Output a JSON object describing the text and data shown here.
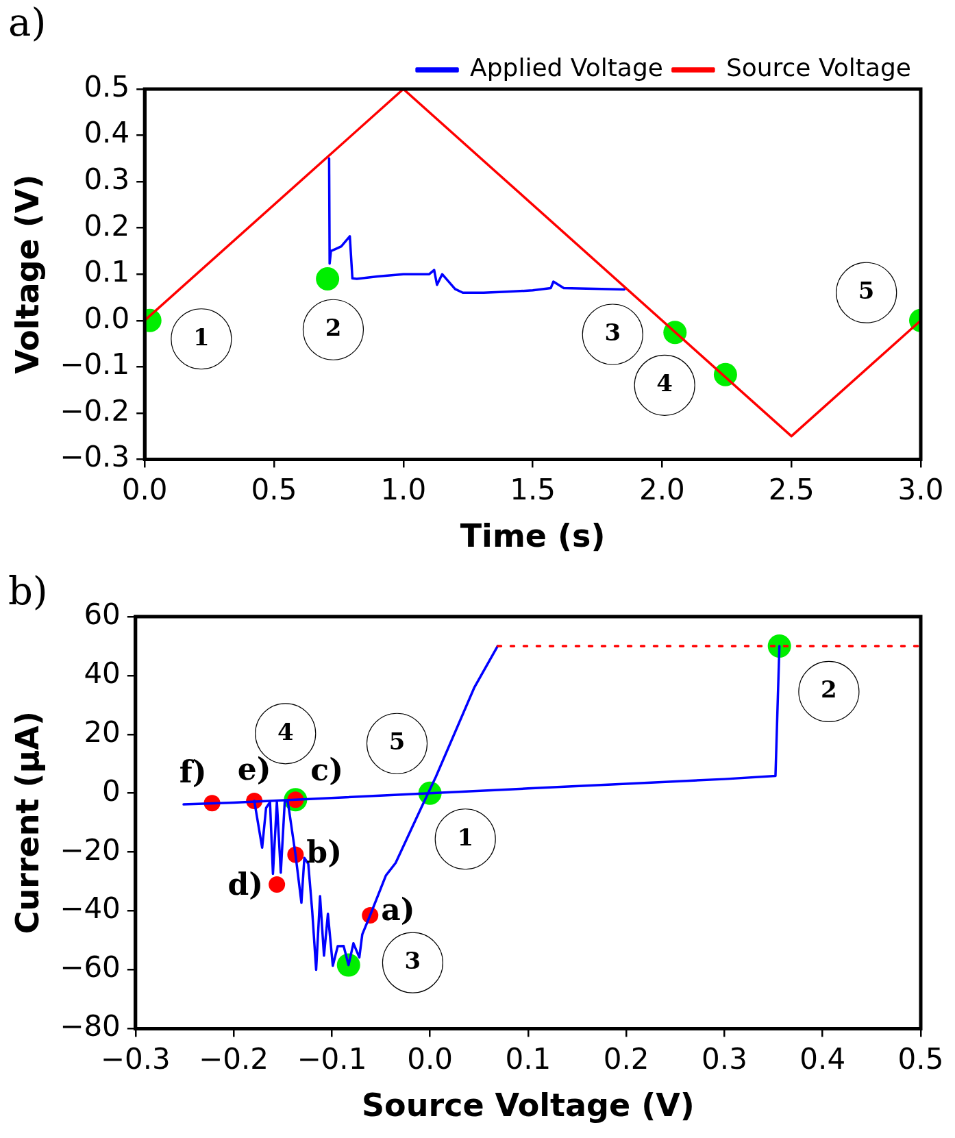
{
  "chart_data": [
    {
      "type": "line",
      "title": "a)",
      "xlabel": "Time (s)",
      "ylabel": "Voltage (V)",
      "xlim": [
        0,
        3
      ],
      "xticks": [
        {
          "value": 0,
          "label": "0.0"
        },
        0.5,
        {
          "value": 1,
          "label": "1.0"
        },
        1.5,
        {
          "value": 2,
          "label": "2.0"
        },
        2.5,
        {
          "value": 3,
          "label": "3.0"
        }
      ],
      "ylim": [
        -0.3,
        0.5
      ],
      "yticks": [
        -0.3,
        -0.2,
        -0.1,
        {
          "value": 0,
          "label": "0.0"
        },
        0.1,
        0.2,
        0.3,
        0.4,
        0.5
      ],
      "grid": false,
      "legend": "top right",
      "series": [
        {
          "name": "Applied Voltage",
          "color": "#0000ff",
          "x": [
            0.713,
            0.715,
            0.72,
            0.74,
            0.76,
            0.793,
            0.803,
            0.82,
            0.9,
            1.0,
            1.1,
            1.119,
            1.13,
            1.15,
            1.2,
            1.23,
            1.31,
            1.4,
            1.5,
            1.57,
            1.58,
            1.62,
            1.854
          ],
          "values": [
            0.35,
            0.123,
            0.15,
            0.155,
            0.16,
            0.182,
            0.091,
            0.09,
            0.095,
            0.1,
            0.1,
            0.109,
            0.077,
            0.1,
            0.068,
            0.06,
            0.06,
            0.062,
            0.065,
            0.07,
            0.084,
            0.07,
            0.067
          ]
        },
        {
          "name": "Source Voltage",
          "color": "#ff0000",
          "x": [
            0,
            1,
            2.5,
            3
          ],
          "values": [
            0,
            0.5,
            -0.25,
            0
          ]
        },
        {
          "type": "scatter",
          "color": "#00ee00",
          "x": [
            0.02,
            0.707,
            2.05,
            2.245,
            3.0
          ],
          "values": [
            0,
            0.09,
            -0.026,
            -0.117,
            0
          ]
        }
      ],
      "annotations": [
        "1",
        "2",
        "3",
        "4",
        "5"
      ]
    },
    {
      "type": "line",
      "title": "b)",
      "xlabel": "Source Voltage (V)",
      "ylabel": "Current (μA)",
      "xlim": [
        -0.3,
        0.5
      ],
      "xticks": [
        -0.3,
        -0.2,
        -0.1,
        {
          "value": 0,
          "label": "0.0"
        },
        0.1,
        0.2,
        0.3,
        0.4,
        0.5
      ],
      "ylim": [
        -80,
        60
      ],
      "yticks": [
        -80,
        -60,
        -40,
        -20,
        0,
        20,
        40,
        60
      ],
      "grid": false,
      "legend": false,
      "series": [
        {
          "color": "#0000ff",
          "x": [
            -0.251,
            -0.2,
            0,
            0.1,
            0.2,
            0.3,
            0.352,
            0.356
          ],
          "values": [
            -3.8,
            -3.2,
            0,
            1.6,
            3.2,
            4.8,
            5.9,
            50
          ]
        },
        {
          "color": "#0000ff",
          "x": [
            -0.179,
            -0.171,
            -0.167,
            -0.163,
            -0.16,
            -0.156,
            -0.152,
            -0.148,
            -0.145,
            -0.137,
            -0.131,
            -0.128,
            -0.124,
            -0.12,
            -0.116,
            -0.112,
            -0.108,
            -0.104,
            -0.099,
            -0.094,
            -0.088,
            -0.083,
            -0.078,
            -0.072,
            -0.069,
            -0.061,
            -0.045,
            -0.035,
            -0.009,
            0.006,
            0.045,
            0.069
          ],
          "values": [
            -2.6,
            -18.5,
            -5,
            -3,
            -27.4,
            -3,
            -27,
            -3,
            -2.5,
            -20.9,
            -37.2,
            -22,
            -24,
            -40,
            -60,
            -35,
            -55.2,
            -41,
            -58.6,
            -52,
            -51.9,
            -58.4,
            -51,
            -55.8,
            -48,
            -41.5,
            -28,
            -23.7,
            -5,
            5.6,
            35.8,
            50
          ]
        },
        {
          "line_style": "dotted",
          "color": "#ff0000",
          "x": [
            0.069,
            0.5
          ],
          "values": [
            50,
            50
          ]
        },
        {
          "type": "scatter",
          "color": "#00ee00",
          "x": [
            0,
            0.356,
            -0.083,
            -0.137
          ],
          "values": [
            0,
            50,
            -58.4,
            -2.2
          ]
        },
        {
          "type": "scatter",
          "color": "#ff0000",
          "x": [
            -0.061,
            -0.137,
            -0.137,
            -0.156,
            -0.179,
            -0.222
          ],
          "values": [
            -41.5,
            -20.9,
            -2.2,
            -31,
            -2.6,
            -3.4
          ],
          "value_labels": [
            "a)",
            "b)",
            "c)",
            "d)",
            "e)",
            "f)"
          ]
        }
      ],
      "annotations": [
        "4",
        "5",
        "1",
        "3",
        "2"
      ]
    }
  ]
}
